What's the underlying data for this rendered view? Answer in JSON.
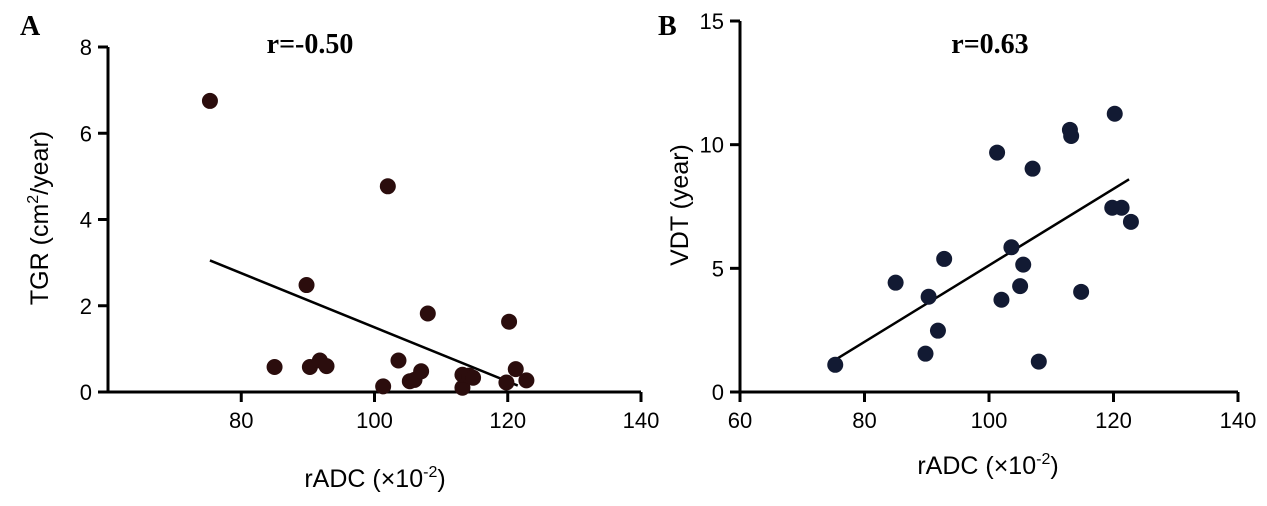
{
  "chart_data": [
    {
      "type": "scatter",
      "panel_label": "A",
      "annotation": "r=-0.50",
      "xlabel": "rADC (×10",
      "xlabel_sup": "-2",
      "xlabel_end": ")",
      "ylabel": "TGR (cm",
      "ylabel_sup": "2",
      "ylabel_end": "/year)",
      "xlim": [
        60,
        140
      ],
      "ylim": [
        0,
        8
      ],
      "xticks": [
        80,
        100,
        120,
        140
      ],
      "yticks": [
        0,
        2,
        4,
        6,
        8
      ],
      "xtick_labels": [
        "80",
        "100",
        "120",
        "140"
      ],
      "ytick_labels": [
        "0",
        "2",
        "4",
        "6",
        "8"
      ],
      "marker_color": "#2b0d0d",
      "points": [
        {
          "x": 75.3,
          "y": 6.75
        },
        {
          "x": 85.0,
          "y": 0.58
        },
        {
          "x": 89.8,
          "y": 2.48
        },
        {
          "x": 90.3,
          "y": 0.58
        },
        {
          "x": 91.8,
          "y": 0.73
        },
        {
          "x": 92.8,
          "y": 0.6
        },
        {
          "x": 101.3,
          "y": 0.13
        },
        {
          "x": 102.0,
          "y": 4.77
        },
        {
          "x": 103.6,
          "y": 0.73
        },
        {
          "x": 105.3,
          "y": 0.25
        },
        {
          "x": 106.0,
          "y": 0.28
        },
        {
          "x": 107.0,
          "y": 0.48
        },
        {
          "x": 108.0,
          "y": 1.82
        },
        {
          "x": 113.2,
          "y": 0.1
        },
        {
          "x": 113.2,
          "y": 0.4
        },
        {
          "x": 114.2,
          "y": 0.38
        },
        {
          "x": 114.8,
          "y": 0.33
        },
        {
          "x": 119.8,
          "y": 0.22
        },
        {
          "x": 120.2,
          "y": 1.63
        },
        {
          "x": 121.2,
          "y": 0.53
        },
        {
          "x": 122.8,
          "y": 0.27
        }
      ],
      "fit": {
        "x1": 75.3,
        "y1": 3.05,
        "x2": 121.5,
        "y2": 0.15
      }
    },
    {
      "type": "scatter",
      "panel_label": "B",
      "annotation": "r=0.63",
      "xlabel": "rADC (×10",
      "xlabel_sup": "-2",
      "xlabel_end": ")",
      "ylabel": "VDT (year)",
      "xlim": [
        60,
        140
      ],
      "ylim": [
        0,
        15
      ],
      "xticks": [
        60,
        80,
        100,
        120,
        140
      ],
      "yticks": [
        0,
        5,
        10,
        15
      ],
      "xtick_labels": [
        "60",
        "80",
        "100",
        "120",
        "140"
      ],
      "ytick_labels": [
        "0",
        "5",
        "10",
        "15"
      ],
      "marker_color": "#121a33",
      "points": [
        {
          "x": 75.3,
          "y": 1.1
        },
        {
          "x": 85.0,
          "y": 4.42
        },
        {
          "x": 89.8,
          "y": 1.55
        },
        {
          "x": 90.3,
          "y": 3.85
        },
        {
          "x": 91.8,
          "y": 2.48
        },
        {
          "x": 92.8,
          "y": 5.38
        },
        {
          "x": 101.3,
          "y": 9.68
        },
        {
          "x": 102.0,
          "y": 3.73
        },
        {
          "x": 103.6,
          "y": 5.85
        },
        {
          "x": 105.0,
          "y": 4.28
        },
        {
          "x": 105.5,
          "y": 5.15
        },
        {
          "x": 107.0,
          "y": 9.03
        },
        {
          "x": 108.0,
          "y": 1.23
        },
        {
          "x": 113.0,
          "y": 10.6
        },
        {
          "x": 113.2,
          "y": 10.35
        },
        {
          "x": 114.8,
          "y": 4.05
        },
        {
          "x": 119.8,
          "y": 7.45
        },
        {
          "x": 120.2,
          "y": 11.25
        },
        {
          "x": 121.3,
          "y": 7.45
        },
        {
          "x": 122.8,
          "y": 6.88
        }
      ],
      "fit": {
        "x1": 75.3,
        "y1": 1.3,
        "x2": 122.5,
        "y2": 8.6
      }
    }
  ]
}
